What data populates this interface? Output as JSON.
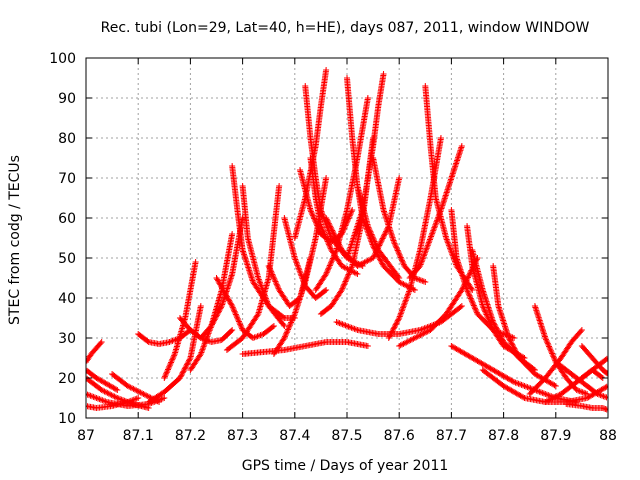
{
  "chart_data": {
    "type": "scatter",
    "title": "Rec. tubi (Lon=29, Lat=40, h=HE), days 087, 2011, window WINDOW",
    "xlabel": "GPS time / Days of year 2011",
    "ylabel": "STEC from codg / TECUs",
    "xlim": [
      87,
      88
    ],
    "ylim": [
      10,
      100
    ],
    "xticks": [
      "87",
      "87.1",
      "87.2",
      "87.3",
      "87.4",
      "87.5",
      "87.6",
      "87.7",
      "87.8",
      "87.9",
      "88"
    ],
    "yticks": [
      "10",
      "20",
      "30",
      "40",
      "50",
      "60",
      "70",
      "80",
      "90",
      "100"
    ],
    "grid": true,
    "marker": "plus",
    "colors": {
      "points": "#ff0000",
      "grid": "#a0a0a0",
      "axes": "#000000"
    },
    "arcs": [
      {
        "x": [
          87.0,
          87.01,
          87.02,
          87.03
        ],
        "y": [
          24,
          26,
          27.5,
          29
        ]
      },
      {
        "x": [
          87.0,
          87.02,
          87.04,
          87.06
        ],
        "y": [
          22,
          20,
          18.5,
          17
        ]
      },
      {
        "x": [
          87.0,
          87.03,
          87.06,
          87.09,
          87.12
        ],
        "y": [
          20,
          17,
          15,
          13.5,
          12.5
        ]
      },
      {
        "x": [
          87.0,
          87.02,
          87.05,
          87.08,
          87.1
        ],
        "y": [
          13,
          12.5,
          13,
          14,
          15
        ]
      },
      {
        "x": [
          87.0,
          87.04,
          87.08,
          87.12,
          87.15
        ],
        "y": [
          16,
          14,
          13,
          13.5,
          15
        ]
      },
      {
        "x": [
          87.05,
          87.08,
          87.11,
          87.14
        ],
        "y": [
          21,
          18,
          16,
          14
        ]
      },
      {
        "x": [
          87.1,
          87.12,
          87.14,
          87.16,
          87.18,
          87.2
        ],
        "y": [
          31,
          29,
          28.5,
          29,
          30,
          32
        ]
      },
      {
        "x": [
          87.12,
          87.15,
          87.18,
          87.2,
          87.22
        ],
        "y": [
          14,
          16.5,
          20,
          25,
          38
        ]
      },
      {
        "x": [
          87.15,
          87.17,
          87.19,
          87.21
        ],
        "y": [
          20,
          26,
          35,
          49
        ]
      },
      {
        "x": [
          87.18,
          87.2,
          87.22,
          87.24,
          87.26,
          87.28
        ],
        "y": [
          35,
          32,
          30,
          29,
          29.5,
          32
        ]
      },
      {
        "x": [
          87.2,
          87.22,
          87.24,
          87.26,
          87.28
        ],
        "y": [
          22,
          26,
          33,
          42,
          56
        ]
      },
      {
        "x": [
          87.22,
          87.24,
          87.26,
          87.28,
          87.3
        ],
        "y": [
          30,
          33,
          38,
          46,
          60
        ]
      },
      {
        "x": [
          87.28,
          87.29,
          87.3,
          87.32,
          87.35,
          87.38,
          87.4
        ],
        "y": [
          73,
          62,
          52,
          44,
          38,
          35,
          35
        ]
      },
      {
        "x": [
          87.3,
          87.31,
          87.33,
          87.35,
          87.38
        ],
        "y": [
          68,
          55,
          45,
          38,
          33
        ]
      },
      {
        "x": [
          87.25,
          87.28,
          87.3,
          87.32,
          87.34,
          87.36
        ],
        "y": [
          45,
          38,
          32,
          30,
          31,
          33
        ]
      },
      {
        "x": [
          87.27,
          87.3,
          87.33,
          87.35,
          87.37
        ],
        "y": [
          27,
          30,
          36,
          45,
          68
        ]
      },
      {
        "x": [
          87.3,
          87.34,
          87.38,
          87.42,
          87.46,
          87.5,
          87.54
        ],
        "y": [
          26,
          26.5,
          27,
          28,
          29,
          29,
          28
        ]
      },
      {
        "x": [
          87.35,
          87.37,
          87.39,
          87.41,
          87.43
        ],
        "y": [
          48,
          42,
          38,
          40,
          50
        ]
      },
      {
        "x": [
          87.36,
          87.38,
          87.4,
          87.42,
          87.44,
          87.46
        ],
        "y": [
          26,
          30,
          36,
          44,
          55,
          70
        ]
      },
      {
        "x": [
          87.38,
          87.4,
          87.42,
          87.44,
          87.46
        ],
        "y": [
          60,
          50,
          43,
          40,
          42
        ]
      },
      {
        "x": [
          87.42,
          87.43,
          87.44,
          87.45,
          87.47,
          87.5,
          87.53
        ],
        "y": [
          93,
          80,
          70,
          62,
          55,
          50,
          48
        ]
      },
      {
        "x": [
          87.43,
          87.44,
          87.45,
          87.47,
          87.49,
          87.52
        ],
        "y": [
          75,
          65,
          58,
          52,
          48,
          46
        ]
      },
      {
        "x": [
          87.4,
          87.42,
          87.44,
          87.45,
          87.46
        ],
        "y": [
          55,
          65,
          78,
          88,
          97
        ]
      },
      {
        "x": [
          87.41,
          87.43,
          87.45,
          87.47,
          87.49,
          87.51
        ],
        "y": [
          72,
          62,
          56,
          54,
          56,
          62
        ]
      },
      {
        "x": [
          87.44,
          87.46,
          87.48,
          87.5,
          87.52,
          87.54
        ],
        "y": [
          42,
          46,
          52,
          62,
          75,
          90
        ]
      },
      {
        "x": [
          87.45,
          87.47,
          87.49,
          87.51,
          87.53,
          87.55
        ],
        "y": [
          36,
          38,
          42,
          48,
          60,
          80
        ]
      },
      {
        "x": [
          87.5,
          87.51,
          87.52,
          87.54,
          87.56,
          87.6
        ],
        "y": [
          95,
          80,
          68,
          58,
          52,
          45
        ]
      },
      {
        "x": [
          87.52,
          87.53,
          87.55,
          87.57,
          87.6,
          87.63
        ],
        "y": [
          68,
          60,
          53,
          48,
          44,
          42
        ]
      },
      {
        "x": [
          87.5,
          87.53,
          87.55,
          87.56,
          87.57
        ],
        "y": [
          50,
          62,
          78,
          88,
          96
        ]
      },
      {
        "x": [
          87.46,
          87.49,
          87.52,
          87.55,
          87.58,
          87.6
        ],
        "y": [
          60,
          52,
          48,
          50,
          58,
          70
        ]
      },
      {
        "x": [
          87.55,
          87.57,
          87.59,
          87.61,
          87.63,
          87.65
        ],
        "y": [
          75,
          62,
          54,
          48,
          45,
          44
        ]
      },
      {
        "x": [
          87.48,
          87.52,
          87.56,
          87.6,
          87.64,
          87.68,
          87.72
        ],
        "y": [
          34,
          32,
          31,
          31,
          32,
          34,
          38
        ]
      },
      {
        "x": [
          87.58,
          87.6,
          87.62,
          87.64,
          87.66,
          87.68
        ],
        "y": [
          30,
          35,
          42,
          52,
          65,
          80
        ]
      },
      {
        "x": [
          87.65,
          87.66,
          87.67,
          87.69,
          87.71,
          87.74
        ],
        "y": [
          93,
          78,
          65,
          55,
          48,
          42
        ]
      },
      {
        "x": [
          87.62,
          87.64,
          87.66,
          87.68,
          87.7,
          87.72
        ],
        "y": [
          45,
          48,
          55,
          62,
          70,
          78
        ]
      },
      {
        "x": [
          87.6,
          87.63,
          87.66,
          87.69,
          87.72,
          87.75
        ],
        "y": [
          28,
          30,
          32,
          36,
          42,
          50
        ]
      },
      {
        "x": [
          87.7,
          87.71,
          87.73,
          87.75,
          87.78,
          87.82
        ],
        "y": [
          62,
          50,
          42,
          36,
          32,
          30
        ]
      },
      {
        "x": [
          87.73,
          87.74,
          87.76,
          87.78,
          87.8,
          87.84
        ],
        "y": [
          58,
          48,
          38,
          32,
          28,
          25
        ]
      },
      {
        "x": [
          87.74,
          87.76,
          87.78,
          87.8,
          87.83,
          87.86
        ],
        "y": [
          52,
          42,
          34,
          29,
          25,
          22
        ]
      },
      {
        "x": [
          87.78,
          87.79,
          87.81,
          87.83,
          87.86,
          87.9
        ],
        "y": [
          48,
          38,
          30,
          25,
          21,
          18
        ]
      },
      {
        "x": [
          87.86,
          87.88,
          87.9,
          87.92,
          87.94,
          87.96
        ],
        "y": [
          38,
          30,
          24,
          20,
          17,
          16
        ]
      },
      {
        "x": [
          87.7,
          87.74,
          87.78,
          87.82,
          87.86,
          87.9,
          87.94
        ],
        "y": [
          28,
          25,
          22,
          19,
          17,
          15,
          14
        ]
      },
      {
        "x": [
          87.76,
          87.8,
          87.84,
          87.88,
          87.92,
          87.96,
          88.0
        ],
        "y": [
          22,
          18,
          15,
          14,
          14,
          15,
          18
        ]
      },
      {
        "x": [
          87.85,
          87.88,
          87.91,
          87.93,
          87.95
        ],
        "y": [
          16,
          20,
          25,
          29,
          32
        ]
      },
      {
        "x": [
          87.88,
          87.91,
          87.94,
          87.97,
          88.0
        ],
        "y": [
          14,
          16,
          19,
          22,
          25
        ]
      },
      {
        "x": [
          87.9,
          87.93,
          87.96,
          87.98,
          88.0
        ],
        "y": [
          24,
          21,
          18,
          16,
          15
        ]
      },
      {
        "x": [
          87.92,
          87.95,
          87.97,
          87.99,
          88.0
        ],
        "y": [
          13.5,
          13,
          12.5,
          12.5,
          12
        ]
      },
      {
        "x": [
          87.95,
          87.97,
          87.99,
          88.0
        ],
        "y": [
          28,
          25,
          22,
          21
        ]
      },
      {
        "x": [
          87.95,
          87.97,
          87.99
        ],
        "y": [
          20,
          22,
          20
        ]
      }
    ]
  }
}
